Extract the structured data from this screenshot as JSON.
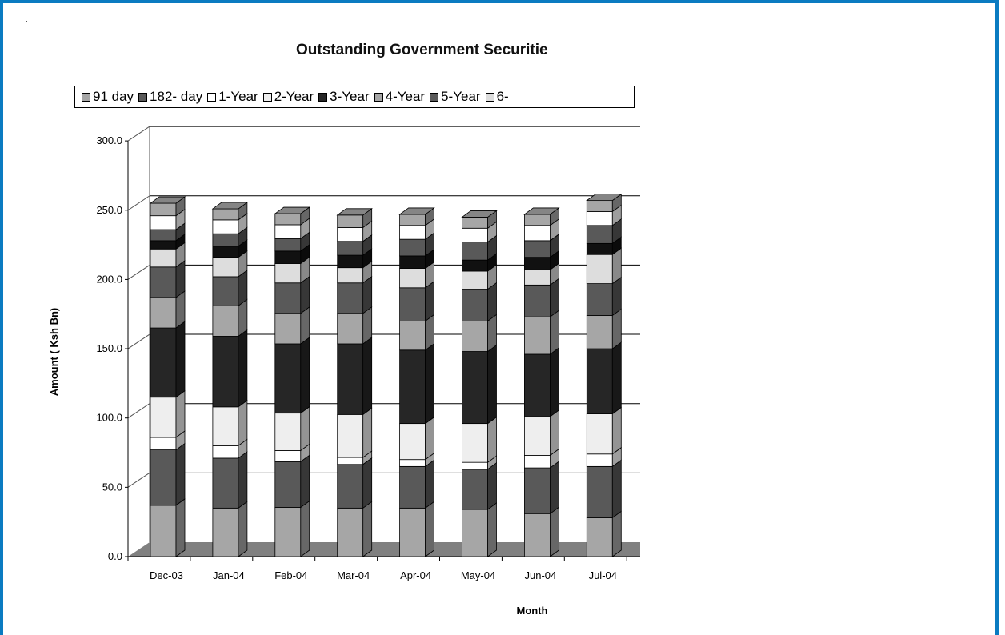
{
  "chart_data": {
    "type": "bar",
    "stacked": true,
    "title": "Outstanding Government Securitie",
    "xlabel": "Month",
    "ylabel": "Amount ( Ksh Bn)",
    "ylim": [
      0,
      300
    ],
    "yticks": [
      "0.0",
      "50.0",
      "100.0",
      "150.0",
      "200.0",
      "250.0",
      "300.0"
    ],
    "grid": true,
    "legend_position": "top",
    "categories": [
      "Dec-03",
      "Jan-04",
      "Feb-04",
      "Mar-04",
      "Apr-04",
      "May-04",
      "Jun-04",
      "Jul-04"
    ],
    "series": [
      {
        "name": "91 day",
        "color": "#a6a6a6",
        "values": [
          37,
          35,
          35.5,
          35,
          35,
          34,
          31,
          28
        ]
      },
      {
        "name": "182- day",
        "color": "#595959",
        "values": [
          40,
          36,
          33,
          31.5,
          30,
          29,
          33,
          37
        ]
      },
      {
        "name": "1-Year",
        "color": "#ffffff",
        "values": [
          9,
          9,
          8,
          5,
          5,
          5,
          9,
          9
        ]
      },
      {
        "name": "2-Year",
        "color": "#eeeeee",
        "values": [
          29,
          28,
          27,
          31,
          26,
          28,
          28,
          29
        ]
      },
      {
        "name": "3-Year",
        "color": "#262626",
        "values": [
          50,
          51,
          50,
          51,
          53,
          52,
          45,
          47
        ]
      },
      {
        "name": "4-Year",
        "color": "#a6a6a6",
        "values": [
          22,
          22,
          22,
          22,
          21,
          22,
          27,
          24
        ]
      },
      {
        "name": "5-Year",
        "color": "#595959",
        "values": [
          22,
          21,
          22,
          22,
          24,
          23,
          23,
          23
        ]
      },
      {
        "name": "6-",
        "color": "#dddddd",
        "values": [
          13,
          14,
          14,
          11,
          14,
          13,
          11,
          21
        ]
      },
      {
        "name": "",
        "color": "#111111",
        "values": [
          6,
          8,
          9,
          9,
          9,
          8,
          9,
          8
        ]
      },
      {
        "name": "",
        "color": "#595959",
        "values": [
          8,
          9,
          9,
          10,
          12,
          13,
          12,
          13
        ]
      },
      {
        "name": "",
        "color": "#ffffff",
        "values": [
          10,
          10,
          10,
          10,
          10,
          10,
          11,
          10
        ]
      },
      {
        "name": "",
        "color": "#a6a6a6",
        "values": [
          9,
          8,
          8,
          9,
          8,
          8,
          8,
          8
        ]
      }
    ]
  }
}
